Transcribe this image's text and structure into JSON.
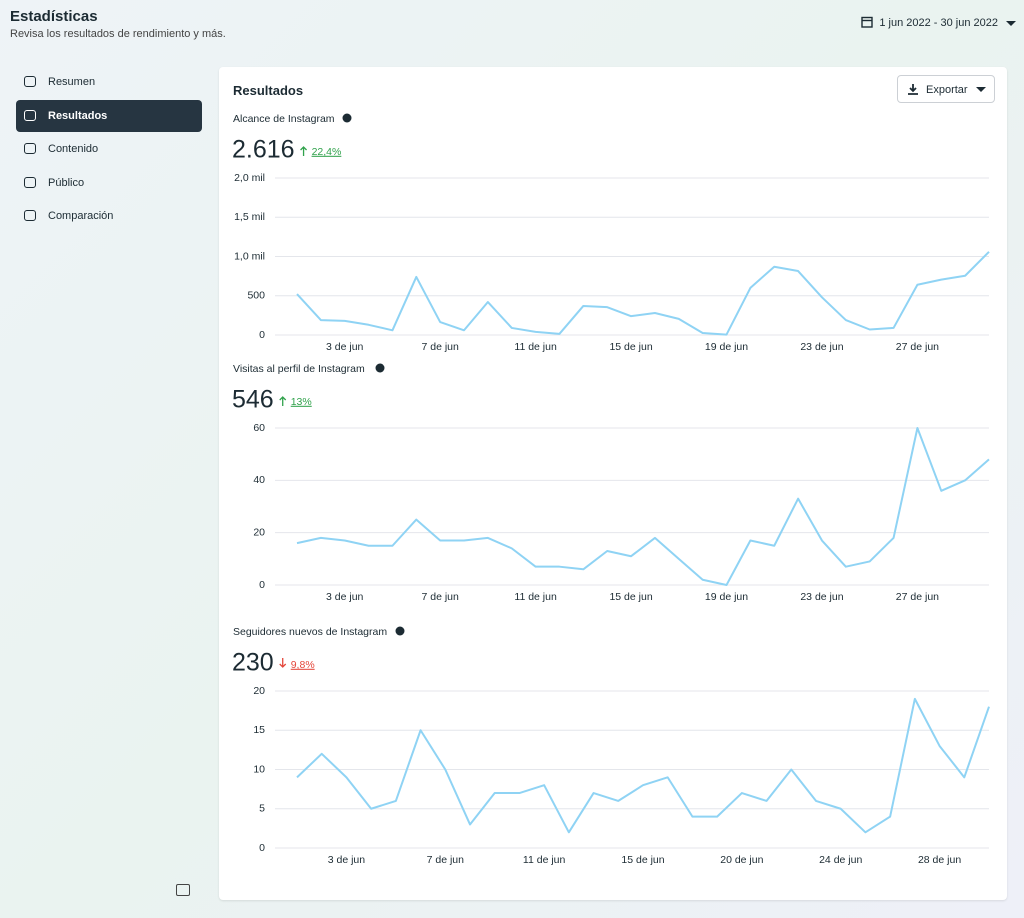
{
  "header": {
    "title": "Estadísticas",
    "subtitle": "Revisa los resultados de rendimiento y más.",
    "date_range": "1 jun 2022 - 30 jun 2022"
  },
  "nav": [
    "Resumen",
    "Resultados",
    "Contenido",
    "Público",
    "Comparación"
  ],
  "nav_active": 1,
  "panel": {
    "title": "Resultados",
    "export": "Exportar"
  },
  "chart_data": [
    {
      "type": "line",
      "title": "Alcance de Instagram",
      "total": "2.616",
      "change": "22,4%",
      "trend": "up",
      "color": "#8fd3f4",
      "grid": true,
      "categories": [
        null,
        null,
        "3 de jun",
        null,
        null,
        null,
        "7 de jun",
        null,
        null,
        null,
        "11 de jun",
        null,
        null,
        null,
        "15 de jun",
        null,
        null,
        null,
        "19 de jun",
        null,
        null,
        null,
        "23 de jun",
        null,
        null,
        null,
        "27 de jun",
        null,
        null,
        null
      ],
      "values": [
        522,
        190,
        180,
        130,
        60,
        740,
        165,
        60,
        420,
        90,
        40,
        15,
        370,
        355,
        240,
        280,
        205,
        25,
        5,
        600,
        870,
        815,
        480,
        190,
        70,
        90,
        640,
        705,
        755,
        1060
      ],
      "ylim": [
        0,
        2000
      ],
      "yticks": [
        0,
        500,
        {
          "value": 1000,
          "label": "1,0 mil"
        },
        {
          "value": 1500,
          "label": "1,5 mil"
        },
        {
          "value": 2000,
          "label": "2,0 mil"
        }
      ]
    },
    {
      "type": "line",
      "title": "Visitas al perfil de Instagram",
      "total": "546",
      "change": "13%",
      "trend": "up",
      "color": "#8fd3f4",
      "grid": true,
      "categories": [
        null,
        null,
        "3 de jun",
        null,
        null,
        null,
        "7 de jun",
        null,
        null,
        null,
        "11 de jun",
        null,
        null,
        null,
        "15 de jun",
        null,
        null,
        null,
        "19 de jun",
        null,
        null,
        null,
        "23 de jun",
        null,
        null,
        null,
        "27 de jun",
        null,
        null,
        null
      ],
      "values": [
        16,
        18,
        17,
        15,
        15,
        25,
        17,
        17,
        18,
        14,
        7,
        7,
        6,
        13,
        11,
        18,
        10,
        2,
        0,
        17,
        15,
        33,
        17,
        7,
        9,
        18,
        60,
        36,
        40,
        48
      ],
      "ylim": [
        0,
        60
      ],
      "yticks": [
        0,
        20,
        40,
        60
      ]
    },
    {
      "type": "line",
      "title": "Seguidores nuevos de Instagram",
      "total": "230",
      "change": "9,8%",
      "trend": "down",
      "color": "#8fd3f4",
      "grid": true,
      "categories": [
        null,
        null,
        "3 de jun",
        null,
        null,
        null,
        "7 de jun",
        null,
        null,
        null,
        "11 de jun",
        null,
        null,
        null,
        "15 de jun",
        null,
        null,
        null,
        "20 de jun",
        null,
        null,
        null,
        "24 de jun",
        null,
        null,
        null,
        "28 de jun",
        null,
        null
      ],
      "values": [
        9,
        12,
        9,
        5,
        6,
        15,
        10,
        3,
        7,
        7,
        8,
        2,
        7,
        6,
        8,
        9,
        4,
        4,
        7,
        6,
        10,
        6,
        5,
        2,
        4,
        19,
        13,
        9,
        18
      ],
      "ylim": [
        0,
        20
      ],
      "yticks": [
        0,
        5,
        10,
        15,
        20
      ]
    }
  ]
}
